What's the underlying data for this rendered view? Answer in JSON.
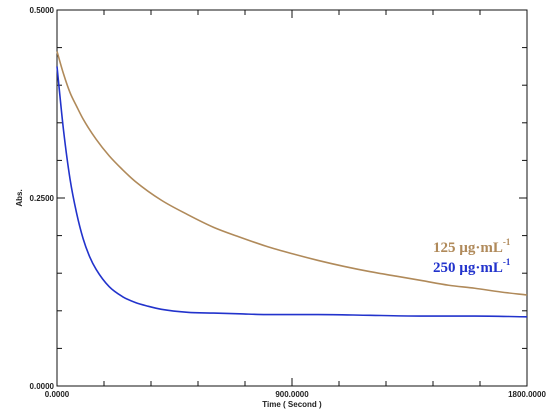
{
  "chart_data": {
    "type": "line",
    "xlabel": "Time ( Second )",
    "ylabel": "Abs.",
    "xlim": [
      0,
      1800
    ],
    "ylim": [
      0,
      0.5
    ],
    "x_ticks": [
      0,
      900,
      1800
    ],
    "x_tick_labels": [
      "0.0000",
      "900.0000",
      "1800.0000"
    ],
    "y_ticks": [
      0,
      0.25,
      0.5
    ],
    "y_tick_labels": [
      "0.0000",
      "0.2500",
      "0.5000"
    ],
    "grid": false,
    "legend_position": "right",
    "series": [
      {
        "name": "125 µg·mL",
        "superscript": "-1",
        "color": "#b08a5a",
        "x": [
          0,
          25,
          50,
          75,
          100,
          150,
          200,
          250,
          300,
          400,
          500,
          600,
          700,
          800,
          900,
          1000,
          1100,
          1200,
          1300,
          1400,
          1500,
          1600,
          1700,
          1800
        ],
        "y": [
          0.445,
          0.415,
          0.39,
          0.372,
          0.355,
          0.328,
          0.306,
          0.288,
          0.272,
          0.247,
          0.228,
          0.211,
          0.198,
          0.186,
          0.176,
          0.167,
          0.159,
          0.152,
          0.146,
          0.14,
          0.134,
          0.13,
          0.125,
          0.121
        ]
      },
      {
        "name": "250 µg·mL",
        "superscript": "-1",
        "color": "#2233cc",
        "x": [
          0,
          10,
          25,
          50,
          75,
          100,
          125,
          150,
          200,
          250,
          300,
          350,
          400,
          500,
          600,
          700,
          800,
          900,
          1000,
          1200,
          1400,
          1600,
          1800
        ],
        "y": [
          0.425,
          0.39,
          0.34,
          0.275,
          0.23,
          0.196,
          0.172,
          0.155,
          0.132,
          0.119,
          0.111,
          0.106,
          0.102,
          0.098,
          0.097,
          0.096,
          0.095,
          0.095,
          0.095,
          0.094,
          0.093,
          0.093,
          0.092
        ]
      }
    ]
  }
}
